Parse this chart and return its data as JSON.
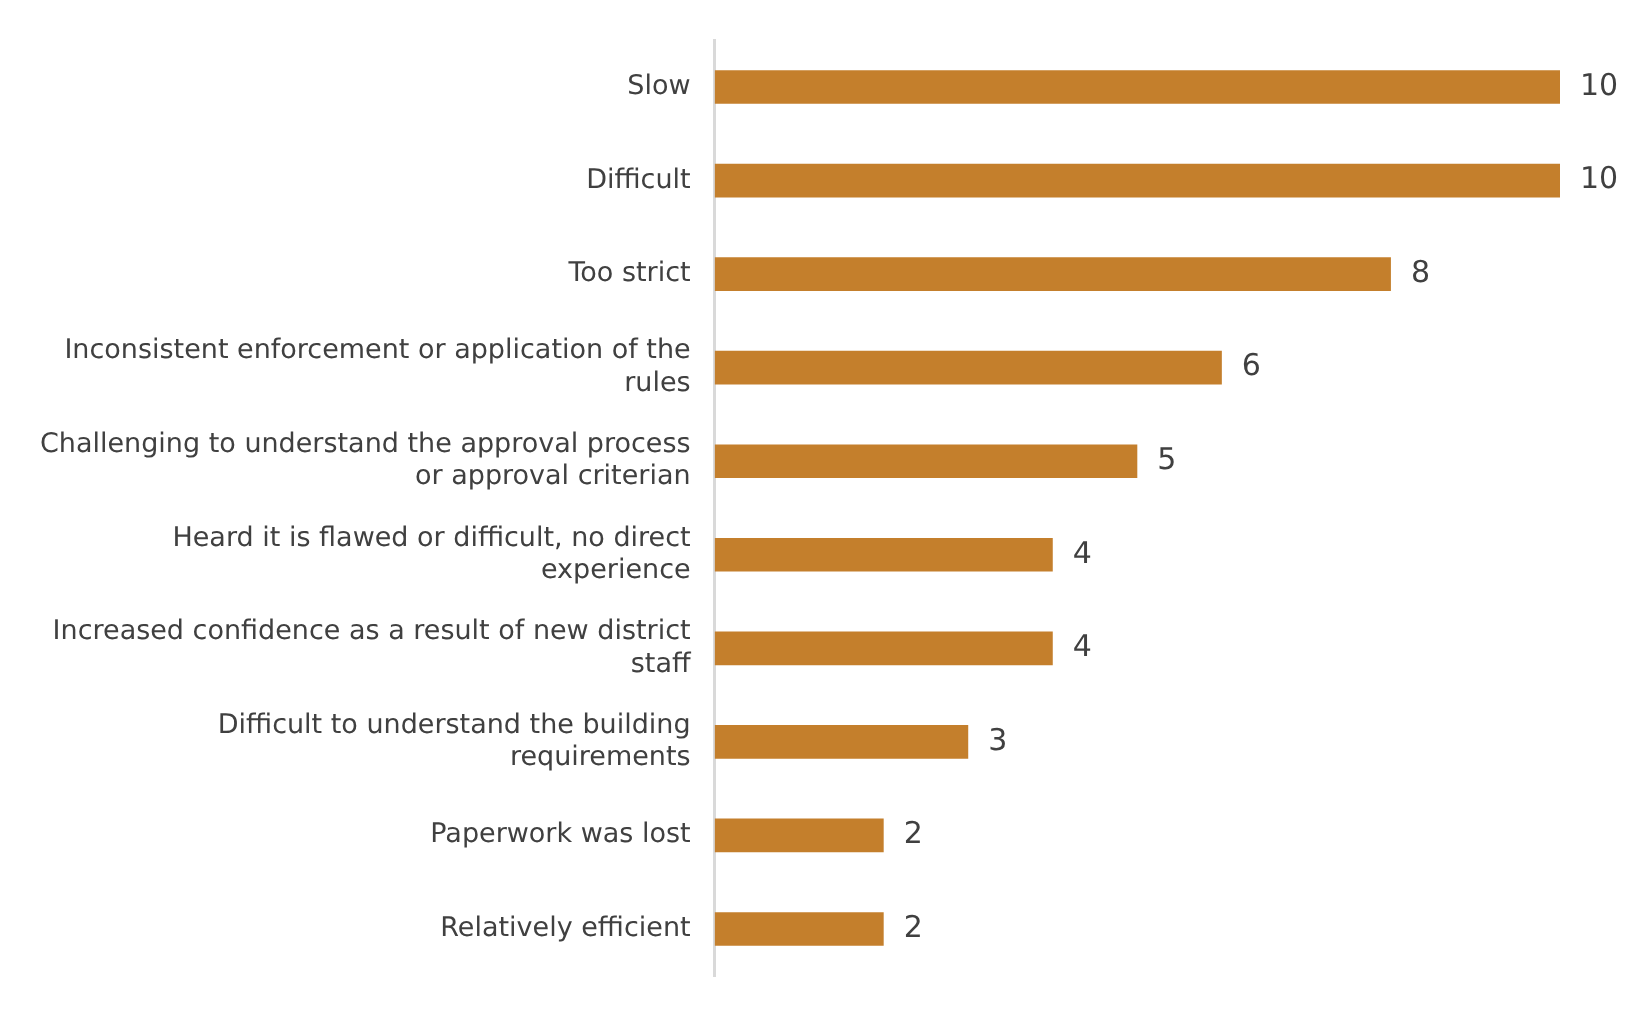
{
  "chart_data": {
    "type": "bar",
    "orientation": "horizontal",
    "categories": [
      "Slow",
      "Difficult",
      "Too strict",
      "Inconsistent enforcement or application of the rules",
      "Challenging to understand the approval process or approval criterian",
      "Heard it is flawed or difficult, no direct experience",
      "Increased confidence as a result of new district staff",
      "Difficult to understand the building requirements",
      "Paperwork was lost",
      "Relatively efficient"
    ],
    "values": [
      10,
      10,
      8,
      6,
      5,
      4,
      4,
      3,
      2,
      2
    ],
    "color": "#c47f2c",
    "data_labels": true,
    "grid": false,
    "legend": false,
    "tick_labels": "y"
  }
}
